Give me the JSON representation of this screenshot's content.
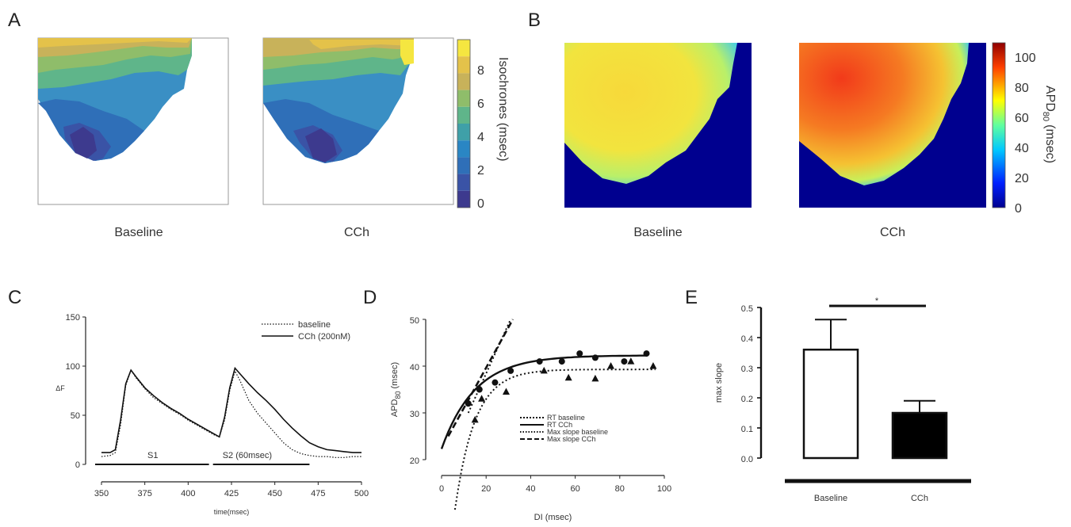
{
  "panels": {
    "A": {
      "letter": "A",
      "left_label": "Baseline",
      "right_label": "CCh",
      "colorbar": {
        "label": "Isochrones (msec)",
        "ticks": [
          "8",
          "6",
          "4",
          "2",
          "0"
        ],
        "colors": [
          "#f5e640",
          "#e4c24a",
          "#c8b25a",
          "#8fbd6a",
          "#5fb58a",
          "#3fa0a8",
          "#2a86c4",
          "#2f6fb8",
          "#3a53a6",
          "#3d3a8e"
        ]
      }
    },
    "B": {
      "letter": "B",
      "left_label": "Baseline",
      "right_label": "CCh",
      "colorbar": {
        "label_main": "APD",
        "label_sub": "80",
        "label_unit": "(msec)",
        "ticks": [
          "100",
          "80",
          "60",
          "40",
          "20",
          "0"
        ]
      }
    },
    "C": {
      "letter": "C"
    },
    "D": {
      "letter": "D"
    },
    "E": {
      "letter": "E"
    }
  },
  "chart_data": [
    {
      "id": "C",
      "type": "line",
      "xlabel": "time(msec)",
      "ylabel": "ΔF",
      "xlim": [
        350,
        500
      ],
      "ylim": [
        0,
        150
      ],
      "xticks": [
        "350",
        "375",
        "400",
        "425",
        "450",
        "475",
        "500"
      ],
      "yticks": [
        "0",
        "50",
        "100",
        "150"
      ],
      "legend": {
        "position": "top-right",
        "entries": [
          "baseline",
          "CCh (200nM)"
        ]
      },
      "stimuli": [
        {
          "label": "S1",
          "x0": 350,
          "x1": 412
        },
        {
          "label": "S2 (60msec)",
          "x0": 418,
          "x1": 470
        }
      ],
      "series": [
        {
          "name": "baseline",
          "style": "dotted",
          "x": [
            350,
            355,
            358,
            361,
            364,
            367,
            370,
            375,
            380,
            385,
            390,
            395,
            400,
            405,
            410,
            415,
            418,
            421,
            424,
            427,
            430,
            435,
            440,
            445,
            450,
            455,
            460,
            465,
            470,
            475,
            480,
            485,
            490,
            495,
            500
          ],
          "y": [
            8,
            9,
            12,
            40,
            80,
            96,
            88,
            77,
            68,
            62,
            56,
            51,
            45,
            40,
            35,
            30,
            28,
            45,
            75,
            95,
            85,
            65,
            52,
            42,
            32,
            22,
            15,
            11,
            9,
            8,
            8,
            7,
            7,
            8,
            8
          ]
        },
        {
          "name": "CCh (200nM)",
          "style": "solid",
          "x": [
            350,
            355,
            358,
            361,
            364,
            367,
            370,
            375,
            380,
            385,
            390,
            395,
            400,
            405,
            410,
            415,
            418,
            421,
            424,
            427,
            430,
            435,
            440,
            445,
            450,
            455,
            460,
            465,
            470,
            475,
            480,
            485,
            490,
            495,
            500
          ],
          "y": [
            12,
            12,
            15,
            45,
            82,
            96,
            89,
            78,
            70,
            63,
            57,
            52,
            46,
            41,
            36,
            31,
            28,
            48,
            78,
            98,
            92,
            82,
            73,
            65,
            56,
            46,
            37,
            29,
            22,
            18,
            15,
            14,
            13,
            12,
            12
          ]
        }
      ]
    },
    {
      "id": "D",
      "type": "scatter",
      "xlabel": "DI (msec)",
      "ylabel_main": "APD",
      "ylabel_sub": "80",
      "ylabel_unit": "(msec)",
      "xlim": [
        0,
        100
      ],
      "ylim": [
        20,
        50
      ],
      "xticks": [
        "0",
        "20",
        "40",
        "60",
        "80",
        "100"
      ],
      "yticks": [
        "20",
        "30",
        "40",
        "50"
      ],
      "legend": {
        "position": "lower-right",
        "entries": [
          "RT baseline",
          "RT CCh",
          "Max slope baseline",
          "Max slope CCh"
        ]
      },
      "points_cch": [
        [
          12,
          32
        ],
        [
          17,
          35
        ],
        [
          24,
          36.5
        ],
        [
          31,
          39
        ],
        [
          44,
          41
        ],
        [
          54,
          41
        ],
        [
          62,
          42.7
        ],
        [
          69,
          41.8
        ],
        [
          82,
          41
        ],
        [
          92,
          42.7
        ]
      ],
      "points_baseline": [
        [
          15,
          28.5
        ],
        [
          18,
          33
        ],
        [
          29,
          34.5
        ],
        [
          46,
          39
        ],
        [
          57,
          37.5
        ],
        [
          69,
          37.3
        ],
        [
          76,
          40
        ],
        [
          85,
          41
        ],
        [
          95,
          40
        ]
      ]
    },
    {
      "id": "E",
      "type": "bar",
      "ylabel": "max slope",
      "ylim": [
        0,
        0.5
      ],
      "yticks": [
        "0.0",
        "0.1",
        "0.2",
        "0.3",
        "0.4",
        "0.5"
      ],
      "categories": [
        "Baseline",
        "CCh"
      ],
      "values": [
        0.36,
        0.15
      ],
      "errors": [
        0.1,
        0.04
      ],
      "significance": "*"
    }
  ]
}
